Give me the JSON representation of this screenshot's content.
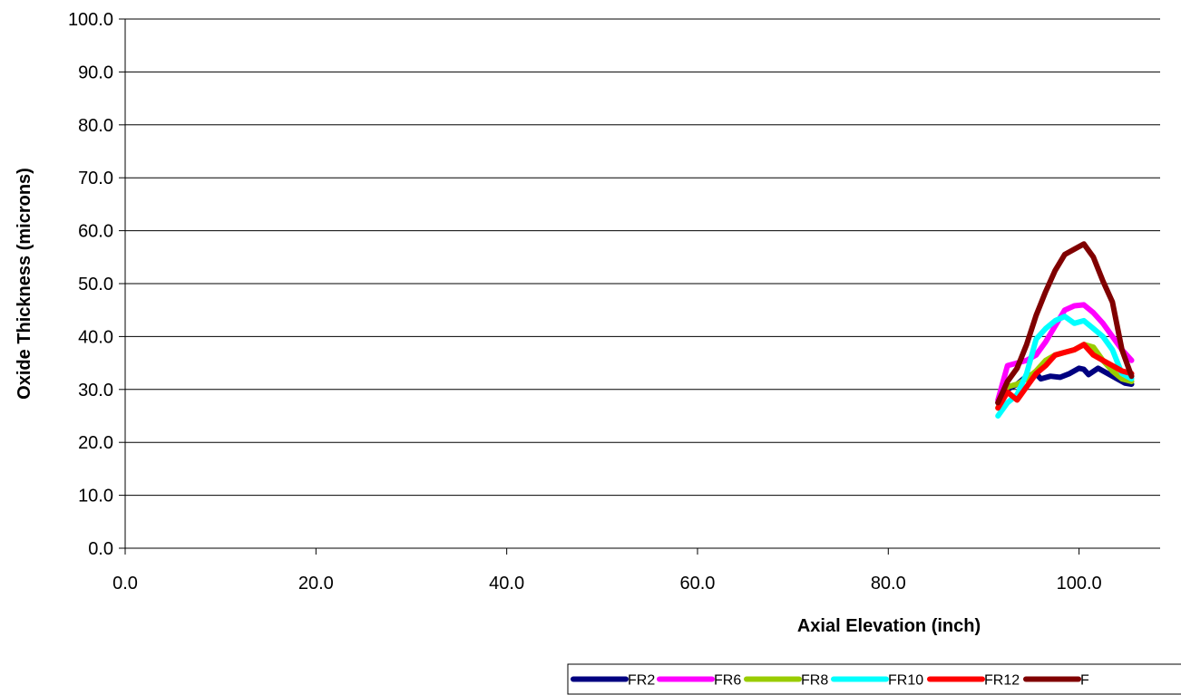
{
  "chart_data": {
    "type": "line",
    "title": "",
    "xlabel": "Axial Elevation (inch)",
    "ylabel": "Oxide Thickness (microns)",
    "xlim": [
      0,
      108.5
    ],
    "ylim": [
      0,
      100
    ],
    "x_ticks": [
      "0.0",
      "20.0",
      "40.0",
      "60.0",
      "80.0",
      "100.0"
    ],
    "y_ticks": [
      "0.0",
      "10.0",
      "20.0",
      "30.0",
      "40.0",
      "50.0",
      "60.0",
      "70.0",
      "80.0",
      "90.0",
      "100.0"
    ],
    "grid": "horizontal",
    "legend_position": "bottom",
    "series": [
      {
        "name": "FR2",
        "color": "#000080",
        "x": [
          91.5,
          92.5,
          93.5,
          94.5,
          95.5,
          96.0,
          97.0,
          98.0,
          99.0,
          100.0,
          100.5,
          101.0,
          102.0,
          103.0,
          104.0,
          104.8,
          105.5
        ],
        "y": [
          27.5,
          30.0,
          31.0,
          32.5,
          33.0,
          32.0,
          32.5,
          32.3,
          33.0,
          34.0,
          33.8,
          32.8,
          34.0,
          33.0,
          32.0,
          31.2,
          31.0
        ]
      },
      {
        "name": "FR6",
        "color": "#FF00FF",
        "x": [
          91.5,
          92.5,
          93.5,
          94.5,
          95.5,
          96.5,
          97.5,
          98.5,
          99.5,
          100.5,
          101.5,
          102.5,
          103.5,
          104.5,
          105.5
        ],
        "y": [
          28.0,
          34.5,
          35.0,
          35.5,
          36.5,
          39.0,
          42.0,
          45.0,
          45.8,
          46.0,
          44.5,
          42.5,
          40.0,
          37.5,
          35.5
        ]
      },
      {
        "name": "FR8",
        "color": "#99CC00",
        "x": [
          91.5,
          92.5,
          93.5,
          94.5,
          95.5,
          96.5,
          97.5,
          98.5,
          99.5,
          100.5,
          101.5,
          102.5,
          103.5,
          104.5,
          105.5
        ],
        "y": [
          26.5,
          30.5,
          31.0,
          32.0,
          33.5,
          35.5,
          36.5,
          37.0,
          37.5,
          38.5,
          38.0,
          35.5,
          33.5,
          32.0,
          31.5
        ]
      },
      {
        "name": "FR10",
        "color": "#00FFFF",
        "x": [
          91.5,
          92.5,
          93.5,
          94.5,
          95.5,
          96.5,
          97.5,
          98.5,
          99.5,
          100.5,
          101.5,
          102.5,
          103.5,
          104.5,
          105.5
        ],
        "y": [
          25.0,
          27.5,
          29.0,
          33.0,
          39.5,
          41.5,
          43.0,
          43.8,
          42.5,
          43.0,
          41.5,
          40.0,
          37.5,
          33.0,
          32.0
        ]
      },
      {
        "name": "FR12",
        "color": "#FF0000",
        "x": [
          91.5,
          92.5,
          93.5,
          94.5,
          95.5,
          96.5,
          97.5,
          98.5,
          99.5,
          100.5,
          101.5,
          102.5,
          103.5,
          104.5,
          105.5
        ],
        "y": [
          26.5,
          29.5,
          28.0,
          30.5,
          33.0,
          34.5,
          36.5,
          37.0,
          37.5,
          38.5,
          36.5,
          35.5,
          34.5,
          33.5,
          33.0
        ]
      },
      {
        "name": "F",
        "color": "#800000",
        "x": [
          91.5,
          92.5,
          93.5,
          94.5,
          95.5,
          96.5,
          97.5,
          98.5,
          99.5,
          100.5,
          101.5,
          102.5,
          103.5,
          104.5,
          105.5
        ],
        "y": [
          27.5,
          31.5,
          34.0,
          38.5,
          44.0,
          48.5,
          52.5,
          55.5,
          56.5,
          57.5,
          55.0,
          50.5,
          46.5,
          37.5,
          32.5
        ]
      }
    ]
  }
}
